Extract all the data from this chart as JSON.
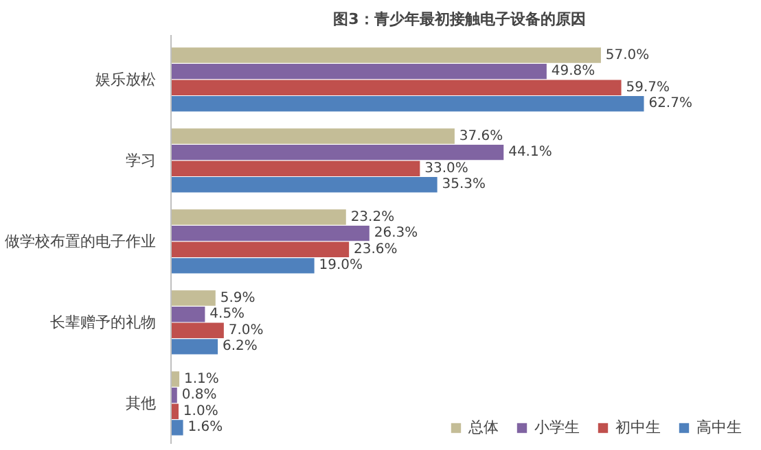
{
  "chart_data": {
    "type": "bar",
    "orientation": "horizontal",
    "title": "图3：青少年最初接触电子设备的原因",
    "categories": [
      "娱乐放松",
      "学习",
      "做学校布置的电子作业",
      "长辈赠予的礼物",
      "其他"
    ],
    "series": [
      {
        "name": "总体",
        "color": "#c4bd97",
        "values": [
          57.0,
          37.6,
          23.2,
          5.9,
          1.1
        ],
        "value_labels": [
          "57.0%",
          "37.6%",
          "23.2%",
          "5.9%",
          "1.1%"
        ]
      },
      {
        "name": "小学生",
        "color": "#8064a2",
        "values": [
          49.8,
          44.1,
          26.3,
          4.5,
          0.8
        ],
        "value_labels": [
          "49.8%",
          "44.1%",
          "26.3%",
          "4.5%",
          "0.8%"
        ]
      },
      {
        "name": "初中生",
        "color": "#c0504d",
        "values": [
          59.7,
          33.0,
          23.6,
          7.0,
          1.0
        ],
        "value_labels": [
          "59.7%",
          "33.0%",
          "23.6%",
          "7.0%",
          "1.0%"
        ]
      },
      {
        "name": "高中生",
        "color": "#4f81bd",
        "values": [
          62.7,
          35.3,
          19.0,
          6.2,
          1.6
        ],
        "value_labels": [
          "62.7%",
          "35.3%",
          "19.0%",
          "6.2%",
          "1.6%"
        ]
      }
    ],
    "legend": "bottom right",
    "grid": false
  }
}
